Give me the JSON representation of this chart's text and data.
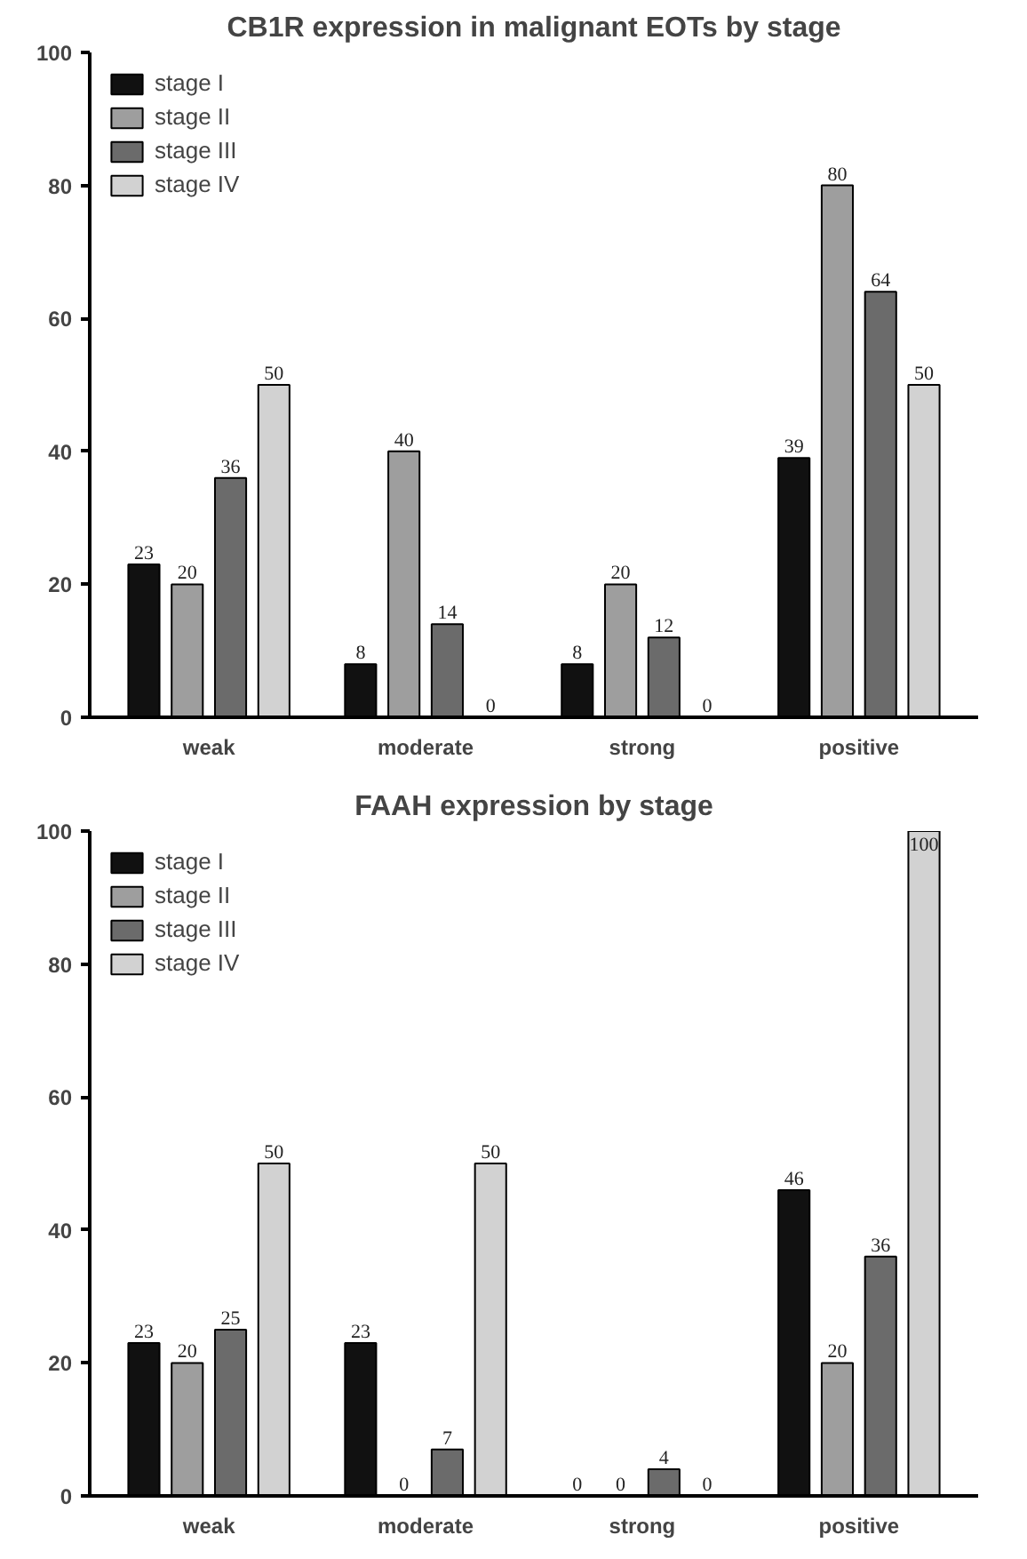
{
  "chart_data": [
    {
      "type": "bar",
      "title": "CB1R expression in malignant EOTs by stage",
      "categories": [
        "weak",
        "moderate",
        "strong",
        "positive"
      ],
      "ylim": [
        0,
        100
      ],
      "yticks": [
        0,
        20,
        40,
        60,
        80,
        100
      ],
      "grid": false,
      "legend": "top left",
      "data_labels": true,
      "series": [
        {
          "name": "stage I",
          "color": "#111111",
          "values": [
            23,
            8,
            8,
            39
          ]
        },
        {
          "name": "stage II",
          "color": "#9e9e9e",
          "values": [
            20,
            40,
            20,
            80
          ]
        },
        {
          "name": "stage III",
          "color": "#6b6b6b",
          "values": [
            36,
            14,
            12,
            64
          ]
        },
        {
          "name": "stage IV",
          "color": "#d2d2d2",
          "values": [
            50,
            0,
            0,
            50
          ]
        }
      ]
    },
    {
      "type": "bar",
      "title": "FAAH expression by stage",
      "categories": [
        "weak",
        "moderate",
        "strong",
        "positive"
      ],
      "ylim": [
        0,
        100
      ],
      "yticks": [
        0,
        20,
        40,
        60,
        80,
        100
      ],
      "grid": false,
      "legend": "top left",
      "data_labels": true,
      "series": [
        {
          "name": "stage I",
          "color": "#111111",
          "values": [
            23,
            23,
            0,
            46
          ]
        },
        {
          "name": "stage II",
          "color": "#9e9e9e",
          "values": [
            20,
            0,
            0,
            20
          ]
        },
        {
          "name": "stage III",
          "color": "#6b6b6b",
          "values": [
            25,
            7,
            4,
            36
          ]
        },
        {
          "name": "stage IV",
          "color": "#d2d2d2",
          "values": [
            50,
            50,
            0,
            100
          ]
        }
      ]
    }
  ]
}
